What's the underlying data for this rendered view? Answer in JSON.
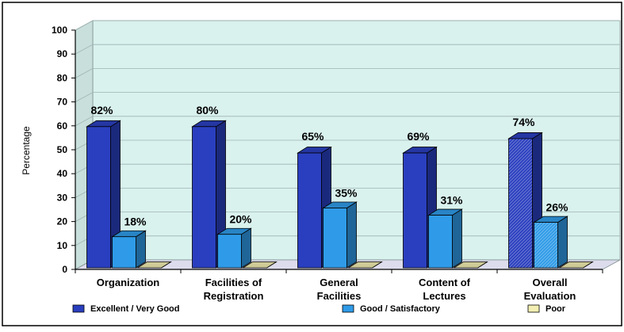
{
  "chart_data": {
    "type": "bar",
    "title": "",
    "xlabel": "",
    "ylabel": "Percentage",
    "ylim": [
      0,
      100
    ],
    "yticks": [
      "0",
      "10",
      "20",
      "30",
      "40",
      "50",
      "60",
      "70",
      "80",
      "90",
      "100"
    ],
    "grid": true,
    "three_d": true,
    "legend_position": "bottom",
    "categories": [
      {
        "line1": "Organization",
        "line2": ""
      },
      {
        "line1": "Facilities of",
        "line2": "Registration"
      },
      {
        "line1": "General",
        "line2": "Facilities"
      },
      {
        "line1": "Content of",
        "line2": "Lectures"
      },
      {
        "line1": "Overall",
        "line2": "Evaluation"
      }
    ],
    "series": [
      {
        "name": "Excellent / Very Good",
        "color": "#2a3fbf",
        "values": [
          59,
          59,
          48,
          48,
          54
        ],
        "labels": [
          "82%",
          "80%",
          "65%",
          "69%",
          "74%"
        ]
      },
      {
        "name": "Good / Satisfactory",
        "color": "#2f9be8",
        "values": [
          13,
          14,
          25,
          22,
          19
        ],
        "labels": [
          "18%",
          "20%",
          "35%",
          "31%",
          "26%"
        ]
      },
      {
        "name": "Poor",
        "color": "#f3efb2",
        "values": [
          0,
          0,
          0,
          0,
          0
        ],
        "labels": [
          "",
          "",
          "",
          "",
          ""
        ]
      }
    ],
    "colors": {
      "wall": "#d9f2ee",
      "floor": "#dcdcec",
      "grid": "#9fb3b3"
    }
  }
}
